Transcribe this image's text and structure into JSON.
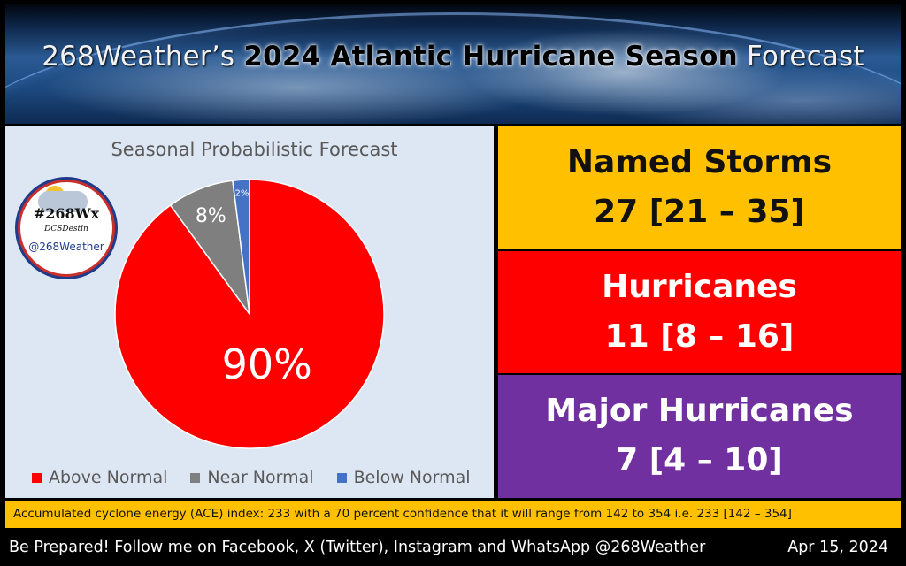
{
  "banner": {
    "title_part1": "268Weather’s ",
    "title_part2": "2024 Atlantic Hurricane Season",
    "title_part3": " Forecast"
  },
  "logo": {
    "tag": "#268Wx",
    "sub": "DCSDestin",
    "handle": "@268Weather"
  },
  "chart_data": {
    "type": "pie",
    "title": "Seasonal Probabilistic Forecast",
    "categories": [
      "Above Normal",
      "Near Normal",
      "Below Normal"
    ],
    "values": [
      90,
      8,
      2
    ],
    "labels": [
      "90%",
      "8%",
      "2%"
    ],
    "colors": [
      "#ff0000",
      "#7f7f7f",
      "#4472c4"
    ],
    "legend_position": "bottom"
  },
  "stats": {
    "named_storms": {
      "label": "Named Storms",
      "value": "27 [21 – 35]"
    },
    "hurricanes": {
      "label": "Hurricanes",
      "value": "11 [8 – 16]"
    },
    "major_hurricanes": {
      "label": "Major Hurricanes",
      "value": "7 [4 – 10]"
    }
  },
  "ace_text": "Accumulated cyclone energy (ACE) index: 233 with a 70 percent confidence that it will range from 142 to 354 i.e. 233 [142 – 354]",
  "footer": {
    "text": "Be Prepared! Follow me on Facebook, X (Twitter), Instagram and WhatsApp @268Weather",
    "date": "Apr 15, 2024"
  }
}
